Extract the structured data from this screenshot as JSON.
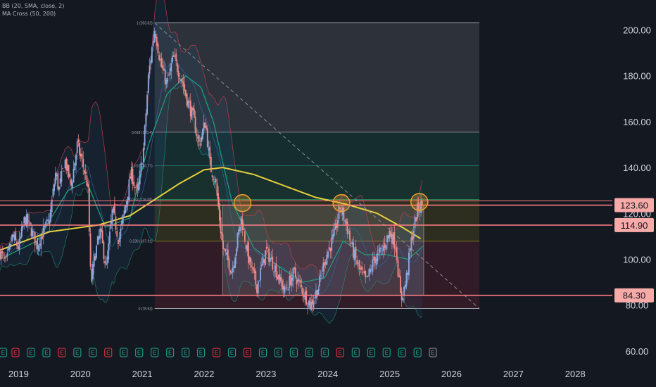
{
  "indicators": {
    "bb": "BB (20, SMA, close, 2)",
    "ma_cross": "MA Cross (50, 200)"
  },
  "colors": {
    "background": "#141820",
    "axis_text": "#d1d4dc",
    "candle_up": "#8fa8e0",
    "candle_down": "#f08a8a",
    "bb_band": "#c2414b",
    "bb_basis": "#2e6aa8",
    "ma50": "#1fa37e",
    "ma200": "#e6cf3e",
    "level_line": "#f77c80",
    "price_label_bg": "#f7aaa8",
    "price_label_text": "#131722",
    "fib_line": "#b2b5be",
    "trend_line": "#8a8e97",
    "range_box": "#b8b8c4",
    "circle_stroke": "#f0a030",
    "circle_fill": "#f0a030",
    "earnings_green": "#22ab94",
    "earnings_red": "#f23645",
    "earnings_gray": "#9598a1"
  },
  "chart_data": {
    "type": "candlestick",
    "x_axis": {
      "tick_labels": [
        "2019",
        "2020",
        "2021",
        "2022",
        "2023",
        "2024",
        "2025",
        "2026",
        "2027",
        "2028"
      ],
      "range": [
        2018.7,
        2028.6
      ]
    },
    "y_axis": {
      "tick_labels": [
        "200.00",
        "180.00",
        "160.00",
        "140.00",
        "120.00",
        "100.00",
        "80.00",
        "60.00"
      ],
      "tick_values": [
        200,
        180,
        160,
        140,
        120,
        100,
        80,
        60
      ],
      "range": [
        56,
        213
      ],
      "scale": "linear",
      "side": "right"
    },
    "price_labels": [
      {
        "text": "123.60",
        "value": 123.6
      },
      {
        "text": "114.90",
        "value": 114.9
      },
      {
        "text": "84.30",
        "value": 84.3
      }
    ],
    "fibonacci": {
      "start_year": 2021.2,
      "end_year": 2026.45,
      "levels": [
        {
          "label": "1 (203.02)",
          "value": 203.02,
          "fill": "#9598a1"
        },
        {
          "label": "0.618 (155.4)",
          "value": 155.4,
          "fill": "#8a8e98"
        },
        {
          "label": "0.5 (140.77)",
          "value": 140.77,
          "fill": "#1f7a6a"
        },
        {
          "label": "0.382 (126.08)",
          "value": 126.08,
          "fill": "#2a8a5f"
        },
        {
          "label": "0.236 (107.91)",
          "value": 107.91,
          "fill": "#8a7a1e"
        },
        {
          "label": "0 (78.53)",
          "value": 78.53,
          "fill": "#9a2a3a"
        }
      ]
    },
    "trend_line": {
      "from": [
        2021.2,
        203.02
      ],
      "to": [
        2026.45,
        78.53
      ]
    },
    "range_box": {
      "x0": 2022.3,
      "x1": 2025.55,
      "y0": 84.3,
      "y1": 123.6
    },
    "resistance_touches": [
      {
        "x": 2022.62,
        "y": 124.5
      },
      {
        "x": 2024.22,
        "y": 124.5
      },
      {
        "x": 2025.48,
        "y": 125.0
      }
    ],
    "price_series": [
      {
        "x": 2018.7,
        "y": 103
      },
      {
        "x": 2018.8,
        "y": 98
      },
      {
        "x": 2018.9,
        "y": 110
      },
      {
        "x": 2019.0,
        "y": 105
      },
      {
        "x": 2019.1,
        "y": 118
      },
      {
        "x": 2019.2,
        "y": 113
      },
      {
        "x": 2019.3,
        "y": 106
      },
      {
        "x": 2019.4,
        "y": 112
      },
      {
        "x": 2019.5,
        "y": 117
      },
      {
        "x": 2019.6,
        "y": 138
      },
      {
        "x": 2019.65,
        "y": 130
      },
      {
        "x": 2019.75,
        "y": 143
      },
      {
        "x": 2019.85,
        "y": 132
      },
      {
        "x": 2019.95,
        "y": 150
      },
      {
        "x": 2020.05,
        "y": 140
      },
      {
        "x": 2020.12,
        "y": 132
      },
      {
        "x": 2020.17,
        "y": 88
      },
      {
        "x": 2020.22,
        "y": 100
      },
      {
        "x": 2020.32,
        "y": 112
      },
      {
        "x": 2020.42,
        "y": 96
      },
      {
        "x": 2020.52,
        "y": 122
      },
      {
        "x": 2020.62,
        "y": 108
      },
      {
        "x": 2020.72,
        "y": 122
      },
      {
        "x": 2020.82,
        "y": 138
      },
      {
        "x": 2020.92,
        "y": 128
      },
      {
        "x": 2021.02,
        "y": 148
      },
      {
        "x": 2021.1,
        "y": 180
      },
      {
        "x": 2021.2,
        "y": 201
      },
      {
        "x": 2021.3,
        "y": 185
      },
      {
        "x": 2021.4,
        "y": 176
      },
      {
        "x": 2021.5,
        "y": 188
      },
      {
        "x": 2021.62,
        "y": 180
      },
      {
        "x": 2021.72,
        "y": 170
      },
      {
        "x": 2021.82,
        "y": 162
      },
      {
        "x": 2021.92,
        "y": 150
      },
      {
        "x": 2022.02,
        "y": 160
      },
      {
        "x": 2022.1,
        "y": 140
      },
      {
        "x": 2022.18,
        "y": 135
      },
      {
        "x": 2022.3,
        "y": 105
      },
      {
        "x": 2022.45,
        "y": 95
      },
      {
        "x": 2022.6,
        "y": 118
      },
      {
        "x": 2022.72,
        "y": 100
      },
      {
        "x": 2022.85,
        "y": 88
      },
      {
        "x": 2023.0,
        "y": 104
      },
      {
        "x": 2023.15,
        "y": 96
      },
      {
        "x": 2023.3,
        "y": 86
      },
      {
        "x": 2023.45,
        "y": 94
      },
      {
        "x": 2023.6,
        "y": 86
      },
      {
        "x": 2023.72,
        "y": 80
      },
      {
        "x": 2023.85,
        "y": 88
      },
      {
        "x": 2023.95,
        "y": 100
      },
      {
        "x": 2024.1,
        "y": 110
      },
      {
        "x": 2024.2,
        "y": 123
      },
      {
        "x": 2024.3,
        "y": 115
      },
      {
        "x": 2024.4,
        "y": 104
      },
      {
        "x": 2024.5,
        "y": 96
      },
      {
        "x": 2024.62,
        "y": 90
      },
      {
        "x": 2024.75,
        "y": 100
      },
      {
        "x": 2024.88,
        "y": 104
      },
      {
        "x": 2025.0,
        "y": 112
      },
      {
        "x": 2025.1,
        "y": 106
      },
      {
        "x": 2025.18,
        "y": 82
      },
      {
        "x": 2025.26,
        "y": 90
      },
      {
        "x": 2025.35,
        "y": 108
      },
      {
        "x": 2025.45,
        "y": 122
      },
      {
        "x": 2025.53,
        "y": 124
      }
    ],
    "ma200_series": [
      {
        "x": 2018.7,
        "y": 104
      },
      {
        "x": 2019.5,
        "y": 112
      },
      {
        "x": 2020.3,
        "y": 115
      },
      {
        "x": 2020.8,
        "y": 119
      },
      {
        "x": 2021.2,
        "y": 126
      },
      {
        "x": 2021.6,
        "y": 133
      },
      {
        "x": 2022.0,
        "y": 139
      },
      {
        "x": 2022.3,
        "y": 140
      },
      {
        "x": 2022.8,
        "y": 137
      },
      {
        "x": 2023.3,
        "y": 132
      },
      {
        "x": 2023.8,
        "y": 127
      },
      {
        "x": 2024.3,
        "y": 124
      },
      {
        "x": 2024.8,
        "y": 120
      },
      {
        "x": 2025.2,
        "y": 114
      },
      {
        "x": 2025.5,
        "y": 109
      }
    ],
    "ma50_series": [
      {
        "x": 2018.7,
        "y": 100
      },
      {
        "x": 2019.3,
        "y": 108
      },
      {
        "x": 2019.8,
        "y": 130
      },
      {
        "x": 2020.1,
        "y": 134
      },
      {
        "x": 2020.4,
        "y": 114
      },
      {
        "x": 2020.8,
        "y": 118
      },
      {
        "x": 2021.1,
        "y": 150
      },
      {
        "x": 2021.4,
        "y": 172
      },
      {
        "x": 2021.7,
        "y": 180
      },
      {
        "x": 2021.95,
        "y": 175
      },
      {
        "x": 2022.15,
        "y": 160
      },
      {
        "x": 2022.45,
        "y": 125
      },
      {
        "x": 2022.8,
        "y": 105
      },
      {
        "x": 2023.2,
        "y": 97
      },
      {
        "x": 2023.6,
        "y": 90
      },
      {
        "x": 2023.95,
        "y": 92
      },
      {
        "x": 2024.25,
        "y": 108
      },
      {
        "x": 2024.6,
        "y": 102
      },
      {
        "x": 2024.95,
        "y": 102
      },
      {
        "x": 2025.3,
        "y": 100
      },
      {
        "x": 2025.55,
        "y": 106
      }
    ],
    "earnings_markers": [
      {
        "x": 2018.75,
        "type": "E",
        "color": "green"
      },
      {
        "x": 2018.95,
        "type": "E",
        "color": "red"
      },
      {
        "x": 2019.2,
        "type": "E",
        "color": "green"
      },
      {
        "x": 2019.45,
        "type": "E",
        "color": "green"
      },
      {
        "x": 2019.7,
        "type": "E",
        "color": "red"
      },
      {
        "x": 2019.95,
        "type": "E",
        "color": "green"
      },
      {
        "x": 2020.2,
        "type": "E",
        "color": "green"
      },
      {
        "x": 2020.45,
        "type": "E",
        "color": "red"
      },
      {
        "x": 2020.7,
        "type": "E",
        "color": "green"
      },
      {
        "x": 2020.95,
        "type": "E",
        "color": "green"
      },
      {
        "x": 2021.2,
        "type": "E",
        "color": "green"
      },
      {
        "x": 2021.45,
        "type": "E",
        "color": "green"
      },
      {
        "x": 2021.7,
        "type": "E",
        "color": "green"
      },
      {
        "x": 2021.95,
        "type": "E",
        "color": "green"
      },
      {
        "x": 2022.2,
        "type": "E",
        "color": "red"
      },
      {
        "x": 2022.45,
        "type": "E",
        "color": "green"
      },
      {
        "x": 2022.7,
        "type": "E",
        "color": "red"
      },
      {
        "x": 2022.95,
        "type": "E",
        "color": "green"
      },
      {
        "x": 2023.2,
        "type": "E",
        "color": "green"
      },
      {
        "x": 2023.45,
        "type": "E",
        "color": "green"
      },
      {
        "x": 2023.7,
        "type": "E",
        "color": "green"
      },
      {
        "x": 2023.95,
        "type": "E",
        "color": "green"
      },
      {
        "x": 2024.2,
        "type": "E",
        "color": "red"
      },
      {
        "x": 2024.45,
        "type": "E",
        "color": "green"
      },
      {
        "x": 2024.7,
        "type": "E",
        "color": "green"
      },
      {
        "x": 2024.95,
        "type": "E",
        "color": "green"
      },
      {
        "x": 2025.2,
        "type": "E",
        "color": "green"
      },
      {
        "x": 2025.45,
        "type": "E",
        "color": "green"
      },
      {
        "x": 2025.7,
        "type": "E",
        "color": "gray"
      }
    ]
  }
}
